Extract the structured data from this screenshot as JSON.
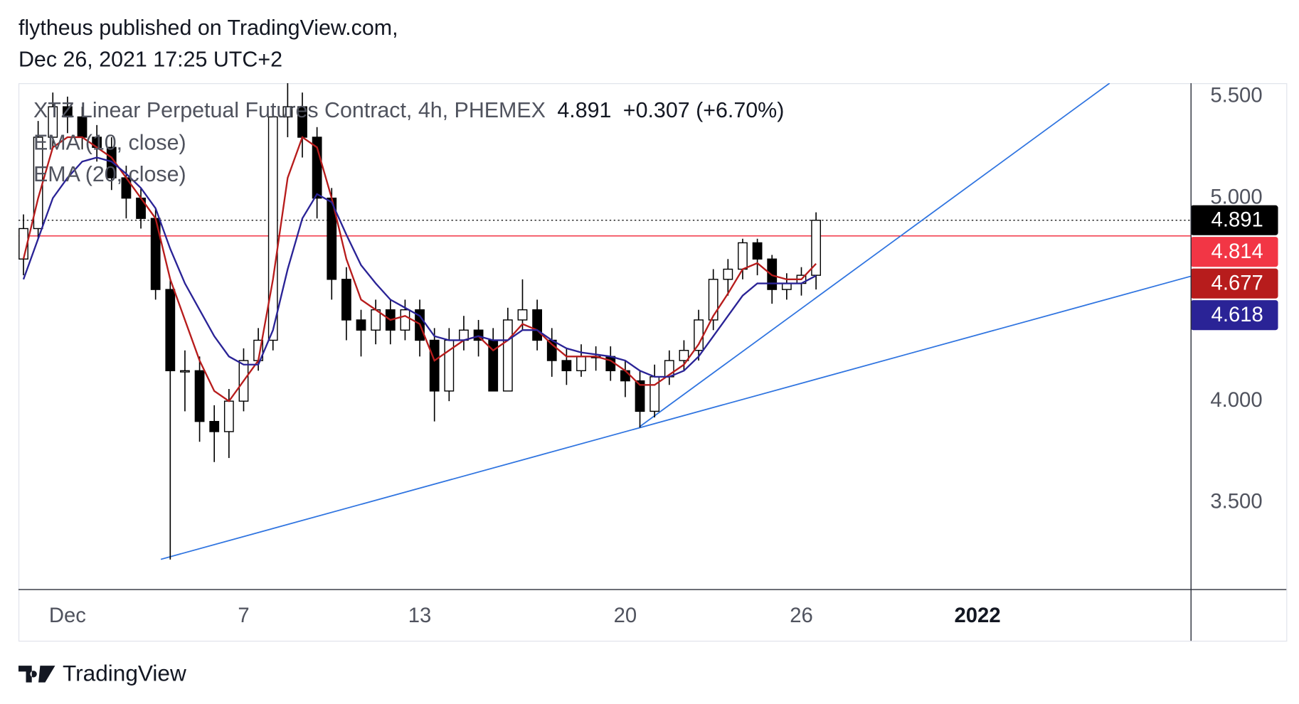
{
  "header": {
    "author_line": "flytheus published on TradingView.com,",
    "date_line": "Dec 26, 2021 17:25 UTC+2"
  },
  "footer": {
    "brand": "TradingView"
  },
  "chart_data": {
    "type": "candlestick",
    "title": "XTZ Linear Perpetual Futures Contract, 4h, PHEMEX",
    "change": "+0.307 (+6.70%)",
    "x": [
      -0.5,
      0,
      0.5,
      1,
      1.5,
      2,
      2.5,
      3,
      3.5,
      4,
      4.5,
      5,
      5.5,
      6,
      6.5,
      7,
      7.5,
      8,
      8.5,
      9,
      9.5,
      10,
      10.5,
      11,
      11.5,
      12,
      12.5,
      13,
      13.5,
      14,
      14.5,
      15,
      15.5,
      16,
      16.5,
      17,
      17.5,
      18,
      18.5,
      19,
      19.5,
      20,
      20.5,
      21,
      21.5,
      22,
      22.5,
      23,
      23.5,
      24,
      24.5,
      25,
      25.5,
      26,
      26.5
    ],
    "open": [
      4.7,
      4.85,
      5.3,
      5.45,
      5.4,
      5.3,
      5.25,
      5.1,
      5.0,
      4.9,
      4.55,
      4.15,
      4.15,
      3.9,
      3.85,
      4.0,
      4.2,
      4.3,
      5.4,
      5.45,
      5.3,
      5.0,
      4.6,
      4.4,
      4.35,
      4.45,
      4.35,
      4.45,
      4.3,
      4.05,
      4.3,
      4.35,
      4.3,
      4.05,
      4.4,
      4.45,
      4.3,
      4.2,
      4.15,
      4.22,
      4.22,
      4.15,
      4.1,
      3.95,
      4.12,
      4.2,
      4.25,
      4.4,
      4.6,
      4.65,
      4.78,
      4.7,
      4.55,
      4.58,
      4.62
    ],
    "high": [
      4.92,
      5.38,
      5.52,
      5.5,
      5.45,
      5.36,
      5.3,
      5.16,
      5.05,
      4.95,
      4.6,
      4.25,
      4.22,
      3.98,
      4.06,
      4.26,
      4.36,
      5.45,
      5.6,
      5.52,
      5.35,
      5.05,
      4.66,
      4.45,
      4.5,
      4.5,
      4.5,
      4.5,
      4.36,
      4.36,
      4.42,
      4.4,
      4.36,
      4.46,
      4.6,
      4.5,
      4.36,
      4.26,
      4.28,
      4.27,
      4.27,
      4.2,
      4.15,
      4.18,
      4.25,
      4.3,
      4.45,
      4.65,
      4.7,
      4.8,
      4.8,
      4.72,
      4.63,
      4.66,
      4.93
    ],
    "low": [
      4.62,
      4.8,
      5.25,
      5.32,
      5.24,
      5.18,
      5.04,
      4.9,
      4.85,
      4.5,
      3.22,
      3.95,
      3.8,
      3.7,
      3.72,
      3.95,
      4.15,
      4.25,
      5.3,
      5.2,
      4.9,
      4.5,
      4.3,
      4.22,
      4.28,
      4.28,
      4.3,
      4.22,
      3.9,
      4.0,
      4.25,
      4.22,
      4.05,
      4.05,
      4.35,
      4.25,
      4.12,
      4.08,
      4.12,
      4.15,
      4.1,
      4.02,
      3.87,
      3.92,
      4.08,
      4.15,
      4.2,
      4.35,
      4.52,
      4.6,
      4.62,
      4.48,
      4.5,
      4.52,
      4.55
    ],
    "close": [
      4.85,
      5.3,
      5.45,
      5.4,
      5.3,
      5.25,
      5.1,
      5.0,
      4.9,
      4.55,
      4.15,
      4.15,
      3.9,
      3.85,
      4.0,
      4.2,
      4.3,
      5.4,
      5.45,
      5.3,
      5.0,
      4.6,
      4.4,
      4.35,
      4.45,
      4.35,
      4.45,
      4.3,
      4.05,
      4.3,
      4.35,
      4.3,
      4.05,
      4.4,
      4.45,
      4.3,
      4.2,
      4.15,
      4.22,
      4.22,
      4.15,
      4.1,
      3.95,
      4.12,
      4.2,
      4.25,
      4.4,
      4.6,
      4.65,
      4.78,
      4.7,
      4.55,
      4.58,
      4.62,
      4.891
    ],
    "up_color": "#ffffff",
    "down_color": "#000000",
    "last_color": "#000000",
    "series": [
      {
        "name": "EMA (10, close)",
        "color": "#b71c1c",
        "values": [
          4.7,
          5.0,
          5.25,
          5.3,
          5.3,
          5.25,
          5.2,
          5.1,
          5.0,
          4.9,
          4.6,
          4.4,
          4.2,
          4.05,
          4.0,
          4.1,
          4.2,
          4.6,
          5.1,
          5.3,
          5.25,
          5.0,
          4.7,
          4.5,
          4.45,
          4.4,
          4.42,
          4.38,
          4.2,
          4.25,
          4.3,
          4.32,
          4.25,
          4.3,
          4.38,
          4.35,
          4.28,
          4.22,
          4.22,
          4.22,
          4.2,
          4.15,
          4.08,
          4.08,
          4.13,
          4.18,
          4.28,
          4.42,
          4.53,
          4.65,
          4.68,
          4.62,
          4.6,
          4.6,
          4.677
        ]
      },
      {
        "name": "EMA (20, close)",
        "color": "#2a2396",
        "values": [
          4.6,
          4.8,
          5.0,
          5.1,
          5.18,
          5.2,
          5.18,
          5.12,
          5.05,
          4.95,
          4.75,
          4.58,
          4.45,
          4.32,
          4.22,
          4.18,
          4.18,
          4.35,
          4.65,
          4.9,
          5.02,
          4.98,
          4.82,
          4.67,
          4.58,
          4.5,
          4.46,
          4.42,
          4.32,
          4.3,
          4.3,
          4.32,
          4.3,
          4.3,
          4.35,
          4.35,
          4.3,
          4.26,
          4.24,
          4.23,
          4.22,
          4.2,
          4.15,
          4.12,
          4.12,
          4.15,
          4.22,
          4.32,
          4.42,
          4.52,
          4.58,
          4.58,
          4.58,
          4.58,
          4.618
        ]
      }
    ],
    "hline": {
      "value": 4.814,
      "color": "#f23645"
    },
    "trend_color": "#2f74e0",
    "trendlines": [
      {
        "x": [
          4.18,
          39.26
        ],
        "y": [
          3.221,
          4.615
        ]
      },
      {
        "x": [
          20.48,
          36.5
        ],
        "y": [
          3.873,
          5.566
        ]
      }
    ],
    "xlim": [
      -0.67,
      39.26
    ],
    "ylim": [
      3.074,
      5.566
    ],
    "xticks": [
      {
        "value": 1,
        "label": "Dec"
      },
      7,
      13,
      20,
      26,
      {
        "value": 32,
        "label": "2022"
      }
    ],
    "yticks": [
      {
        "value": 3.5,
        "label": "3.500"
      },
      {
        "value": 4,
        "label": "4.000"
      },
      {
        "value": 5,
        "label": "5.000"
      },
      {
        "value": 5.5,
        "label": "5.500"
      }
    ]
  }
}
